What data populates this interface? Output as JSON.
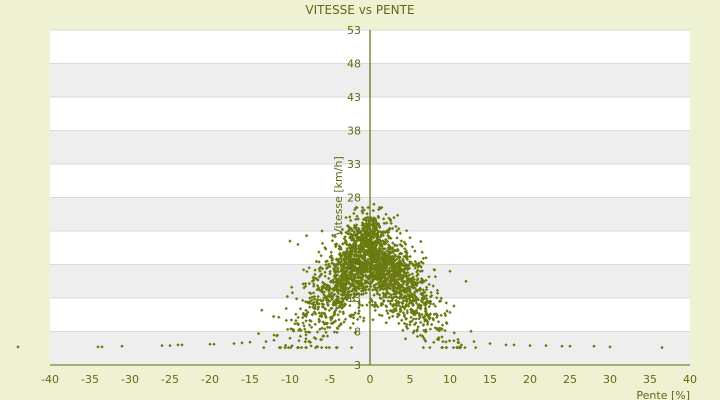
{
  "chart_data": {
    "type": "scatter",
    "title": "VITESSE vs PENTE",
    "xlabel": "Pente [%]",
    "ylabel": "Vitesse [km/h]",
    "xlim": [
      -40,
      40
    ],
    "ylim": [
      3,
      53
    ],
    "x_ticks": [
      "-40",
      "-35",
      "-30",
      "-25",
      "-20",
      "-15",
      "-10",
      "-5",
      "0",
      "5",
      "10",
      "15",
      "20",
      "25",
      "30",
      "35",
      "40"
    ],
    "y_ticks": [
      "3",
      "8",
      "13",
      "18",
      "23",
      "28",
      "33",
      "38",
      "43",
      "48",
      "53"
    ],
    "grid": true,
    "legend": "none",
    "colors": {
      "background": "#eef2d2",
      "plot_band_light": "#ffffff",
      "plot_band_dark": "#eeeeee",
      "gridline": "#d9d9d9",
      "marker": "#6b7a10",
      "axis": "#5f6a12",
      "text": "#5f6a12"
    },
    "approx_point_count": 2500,
    "series": [
      {
        "marker": "small-diamond",
        "points": [
          [
            -44,
            5.7
          ],
          [
            -34,
            5.7
          ],
          [
            -33.5,
            5.7
          ],
          [
            -31,
            5.8
          ],
          [
            -26,
            5.9
          ],
          [
            -25,
            5.9
          ],
          [
            -24,
            6.0
          ],
          [
            -23.5,
            6.0
          ],
          [
            -20,
            6.1
          ],
          [
            -19.5,
            6.1
          ],
          [
            -17,
            6.2
          ],
          [
            -16,
            6.3
          ],
          [
            -15,
            6.4
          ],
          [
            -13,
            6.5
          ],
          [
            -12,
            6.7
          ],
          [
            -10,
            7.0
          ],
          [
            -8,
            7.5
          ],
          [
            -6,
            8.5
          ],
          [
            -4,
            10.5
          ],
          [
            -2,
            13.5
          ],
          [
            -1,
            16
          ],
          [
            0,
            18
          ],
          [
            1,
            16
          ],
          [
            2,
            13.5
          ],
          [
            3,
            11
          ],
          [
            5,
            9
          ],
          [
            7,
            8
          ],
          [
            9,
            7.2
          ],
          [
            11,
            6.8
          ],
          [
            13,
            6.5
          ],
          [
            15,
            6.2
          ],
          [
            17,
            6.0
          ],
          [
            18,
            6.0
          ],
          [
            20,
            5.9
          ],
          [
            22,
            5.9
          ],
          [
            24,
            5.8
          ],
          [
            25,
            5.8
          ],
          [
            28,
            5.8
          ],
          [
            30,
            5.7
          ],
          [
            36.5,
            5.6
          ],
          [
            -10,
            21.5
          ],
          [
            -9,
            21.0
          ],
          [
            -6,
            23.0
          ],
          [
            -3,
            25.0
          ],
          [
            -1,
            26.0
          ],
          [
            0.5,
            27.0
          ],
          [
            2,
            25.5
          ],
          [
            3,
            25.0
          ],
          [
            5,
            22.0
          ],
          [
            7,
            19.0
          ],
          [
            10,
            17.0
          ],
          [
            12,
            15.5
          ]
        ]
      }
    ]
  }
}
